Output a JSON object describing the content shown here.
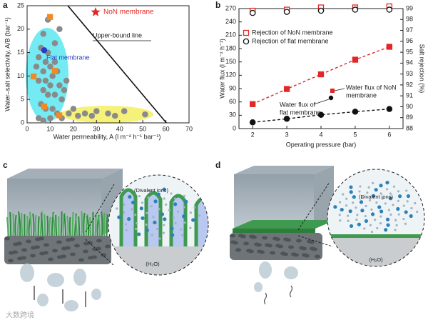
{
  "panel_labels": [
    "a",
    "b",
    "c",
    "d"
  ],
  "chart_data": [
    {
      "type": "scatter",
      "x_label": "Water permeability, A (l m⁻² h⁻¹ bar⁻¹)",
      "y_label": "Water–salt selectivity, A/B (bar⁻¹)",
      "xlim": [
        0,
        70
      ],
      "xticks": [
        0,
        10,
        20,
        30,
        40,
        50,
        60,
        70
      ],
      "ylim": [
        0,
        25
      ],
      "yticks": [
        0,
        5,
        10,
        15,
        20,
        25
      ],
      "series": [
        {
          "color": "#8a8a8a",
          "marker": "circle",
          "legend": false,
          "x": [
            4,
            5,
            6,
            5,
            7,
            8,
            9,
            10,
            11,
            12,
            13,
            7,
            8,
            9,
            10,
            12,
            14,
            15,
            16,
            17,
            6,
            8,
            11,
            13,
            18,
            20,
            22,
            25,
            28,
            30,
            35,
            38,
            42,
            51,
            5,
            7,
            10,
            15,
            12,
            14,
            9,
            7
          ],
          "values": [
            12,
            14,
            16,
            9,
            11,
            13,
            15,
            12,
            10,
            13,
            11,
            7,
            9,
            6,
            8,
            6,
            8,
            5,
            7,
            9,
            4,
            3,
            3,
            2,
            2,
            3,
            1.5,
            2,
            1.5,
            2.5,
            2,
            1.5,
            2.5,
            1.8,
            1,
            0.5,
            1,
            1,
            17,
            20,
            22,
            19
          ]
        },
        {
          "color": "#f08a24",
          "marker": "square",
          "legend": false,
          "x": [
            9.9,
            2.8,
            12,
            7.4,
            13.9
          ],
          "values": [
            22.6,
            9.9,
            11.1,
            3.5,
            1.6
          ]
        },
        {
          "name": "Flat membrane",
          "color": "#2b3cc4",
          "marker": "circle",
          "legend": false,
          "x": [
            7.4
          ],
          "values": [
            15.5
          ]
        },
        {
          "name": "NoN membrane",
          "color": "#e32626",
          "marker": "star",
          "legend": true,
          "x": [],
          "values": []
        }
      ],
      "upper_bound": {
        "label": "Upper-bound line",
        "x": [
          17.6,
          60.2
        ],
        "values": [
          25,
          0
        ]
      }
    },
    {
      "type": "line",
      "x_label": "Operating pressure (bar)",
      "y_label": "Water flux (l m⁻² h⁻¹)",
      "y2_label": "Salt rejection (%)",
      "x": [
        2,
        3,
        4,
        5,
        6
      ],
      "xlim": [
        1.6,
        6.4
      ],
      "xticks": [
        2,
        3,
        4,
        5,
        6
      ],
      "ylim": [
        0,
        270
      ],
      "yticks": [
        0,
        30,
        60,
        90,
        120,
        150,
        180,
        210,
        240,
        270
      ],
      "y2lim": [
        88,
        99
      ],
      "y2ticks": [
        88,
        89,
        90,
        91,
        92,
        93,
        94,
        95,
        96,
        97,
        98,
        99
      ],
      "series": [
        {
          "name": "Rejection of NoN membrane",
          "color": "#e32626",
          "marker": "square",
          "filled": false,
          "axis": "y2",
          "values": [
            98.8,
            98.9,
            99.1,
            99.1,
            99.2
          ]
        },
        {
          "name": "Rejection of flat membrane",
          "color": "#111111",
          "marker": "circle",
          "filled": false,
          "axis": "y2",
          "values": [
            98.6,
            98.7,
            98.8,
            98.9,
            98.9
          ]
        },
        {
          "color": "#e32626",
          "marker": "square",
          "filled": true,
          "line": "dashed",
          "values": [
            55,
            89,
            122,
            155,
            184
          ]
        },
        {
          "color": "#111111",
          "marker": "circle",
          "filled": true,
          "line": "dashed",
          "values": [
            14,
            22,
            31,
            38,
            44
          ]
        }
      ],
      "annotations": [
        {
          "lines": [
            "Water flux of NoN",
            "membrane"
          ]
        },
        {
          "lines": [
            "Water flux of",
            "flat membrane"
          ]
        }
      ]
    }
  ],
  "illustrations": [
    {
      "labels": [
        "(Divalent ions)",
        "(H₂O)"
      ]
    },
    {
      "labels": [
        "(Divalent ions)",
        "(H₂O)"
      ]
    }
  ],
  "watermark": "大数跨境"
}
